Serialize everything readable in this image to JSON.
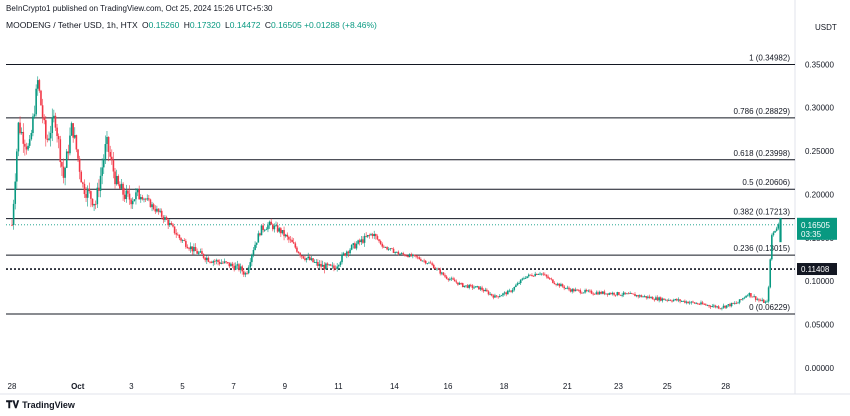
{
  "header": {
    "published": "BeInCrypto1 published on TradingView.com, Oct 25, 2024 15:26 UTC+5:30"
  },
  "symbol": {
    "name": "MOODENG / Tether USD, 1h, HTX",
    "open_label": "O",
    "open": "0.15260",
    "high_label": "H",
    "high": "0.17320",
    "low_label": "L",
    "low": "0.14472",
    "close_label": "C",
    "close": "0.16505",
    "change": "+0.01288 (+8.46%)"
  },
  "currency": "USDT",
  "footer": {
    "brand": "TradingView"
  },
  "colors": {
    "up": "#089981",
    "down": "#f23645",
    "fib_line": "#131722",
    "price_label_bg": "#089981",
    "support_label_bg": "#131722"
  },
  "chart_data": {
    "type": "candlestick",
    "ylim": [
      -0.03,
      0.385
    ],
    "y_ticks": [
      "0.35000",
      "0.30000",
      "0.25000",
      "0.20000",
      "0.15000",
      "0.10000",
      "0.05000",
      "0.00000"
    ],
    "x_ticks": [
      "28",
      "Oct",
      "3",
      "5",
      "7",
      "9",
      "11",
      "14",
      "16",
      "18",
      "21",
      "23",
      "25",
      "28"
    ],
    "fib_levels": [
      {
        "label": "1 (0.34982)",
        "value": 0.34982
      },
      {
        "label": "0.786 (0.28829)",
        "value": 0.28829
      },
      {
        "label": "0.618 (0.23998)",
        "value": 0.23998
      },
      {
        "label": "0.5 (0.20606)",
        "value": 0.20606
      },
      {
        "label": "0.382 (0.17213)",
        "value": 0.17213
      },
      {
        "label": "0.236 (0.13015)",
        "value": 0.13015
      },
      {
        "label": "0 (0.06229)",
        "value": 0.06229
      }
    ],
    "support_level": {
      "label": "0.11408",
      "value": 0.11408
    },
    "current_price": {
      "label": "0.16505",
      "value": 0.16505,
      "countdown": "03:35"
    },
    "price_path": [
      {
        "x": 0.0,
        "y": 0.165
      },
      {
        "x": 0.3,
        "y": 0.28
      },
      {
        "x": 0.8,
        "y": 0.25
      },
      {
        "x": 1.2,
        "y": 0.33
      },
      {
        "x": 1.6,
        "y": 0.26
      },
      {
        "x": 2.0,
        "y": 0.29
      },
      {
        "x": 2.4,
        "y": 0.22
      },
      {
        "x": 2.8,
        "y": 0.28
      },
      {
        "x": 3.3,
        "y": 0.21
      },
      {
        "x": 3.9,
        "y": 0.19
      },
      {
        "x": 4.4,
        "y": 0.26
      },
      {
        "x": 4.9,
        "y": 0.21
      },
      {
        "x": 5.4,
        "y": 0.195
      },
      {
        "x": 6.0,
        "y": 0.2
      },
      {
        "x": 6.6,
        "y": 0.185
      },
      {
        "x": 7.2,
        "y": 0.17
      },
      {
        "x": 7.8,
        "y": 0.15
      },
      {
        "x": 8.5,
        "y": 0.135
      },
      {
        "x": 9.2,
        "y": 0.125
      },
      {
        "x": 10.0,
        "y": 0.12
      },
      {
        "x": 10.6,
        "y": 0.115
      },
      {
        "x": 10.9,
        "y": 0.108
      },
      {
        "x": 11.2,
        "y": 0.135
      },
      {
        "x": 11.6,
        "y": 0.16
      },
      {
        "x": 12.0,
        "y": 0.165
      },
      {
        "x": 12.5,
        "y": 0.158
      },
      {
        "x": 13.0,
        "y": 0.145
      },
      {
        "x": 13.5,
        "y": 0.13
      },
      {
        "x": 14.3,
        "y": 0.118
      },
      {
        "x": 15.0,
        "y": 0.115
      },
      {
        "x": 15.6,
        "y": 0.135
      },
      {
        "x": 16.2,
        "y": 0.145
      },
      {
        "x": 16.8,
        "y": 0.155
      },
      {
        "x": 17.3,
        "y": 0.14
      },
      {
        "x": 18.0,
        "y": 0.132
      },
      {
        "x": 18.8,
        "y": 0.128
      },
      {
        "x": 19.5,
        "y": 0.12
      },
      {
        "x": 20.2,
        "y": 0.105
      },
      {
        "x": 21.0,
        "y": 0.095
      },
      {
        "x": 21.8,
        "y": 0.092
      },
      {
        "x": 22.5,
        "y": 0.082
      },
      {
        "x": 23.2,
        "y": 0.088
      },
      {
        "x": 23.9,
        "y": 0.105
      },
      {
        "x": 24.6,
        "y": 0.11
      },
      {
        "x": 25.3,
        "y": 0.098
      },
      {
        "x": 26.0,
        "y": 0.09
      },
      {
        "x": 27.0,
        "y": 0.087
      },
      {
        "x": 28.0,
        "y": 0.086
      },
      {
        "x": 29.0,
        "y": 0.084
      },
      {
        "x": 30.0,
        "y": 0.08
      },
      {
        "x": 31.0,
        "y": 0.078
      },
      {
        "x": 32.0,
        "y": 0.074
      },
      {
        "x": 33.0,
        "y": 0.07
      },
      {
        "x": 33.8,
        "y": 0.075
      },
      {
        "x": 34.3,
        "y": 0.086
      },
      {
        "x": 34.8,
        "y": 0.078
      },
      {
        "x": 35.2,
        "y": 0.075
      },
      {
        "x": 35.4,
        "y": 0.153
      },
      {
        "x": 35.7,
        "y": 0.165
      }
    ]
  }
}
